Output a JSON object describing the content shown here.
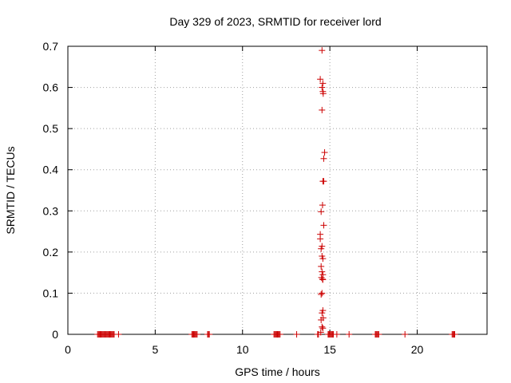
{
  "chart_data": {
    "type": "scatter",
    "title": "Day 329 of 2023, SRMTID for receiver lord",
    "xlabel": "GPS time / hours",
    "ylabel": "SRMTID / TECUs",
    "xlim": [
      0,
      24
    ],
    "ylim": [
      0,
      0.7
    ],
    "xticks": [
      0,
      5,
      10,
      15,
      20
    ],
    "yticks": [
      0,
      0.1,
      0.2,
      0.3,
      0.4,
      0.5,
      0.6,
      0.7
    ],
    "xtick_labels": [
      "0",
      "5",
      "10",
      "15",
      "20"
    ],
    "ytick_labels": [
      "0",
      "0.1",
      "0.2",
      "0.3",
      "0.4",
      "0.5",
      "0.6",
      "0.7"
    ],
    "grid": true,
    "marker": "+",
    "marker_color": "#cc0000",
    "series": [
      {
        "points": [
          [
            1.7,
            0
          ],
          [
            1.75,
            0
          ],
          [
            1.8,
            0
          ],
          [
            1.85,
            0
          ],
          [
            1.9,
            0
          ],
          [
            1.95,
            0
          ],
          [
            2.0,
            0
          ],
          [
            2.05,
            0
          ],
          [
            2.1,
            0
          ],
          [
            2.15,
            0
          ],
          [
            2.2,
            0
          ],
          [
            2.25,
            0
          ],
          [
            2.3,
            0
          ],
          [
            2.35,
            0
          ],
          [
            2.4,
            0
          ],
          [
            2.45,
            0
          ],
          [
            2.5,
            0
          ],
          [
            2.55,
            0
          ],
          [
            2.6,
            0
          ],
          [
            2.65,
            0
          ],
          [
            2.9,
            0
          ],
          [
            7.1,
            0
          ],
          [
            7.15,
            0
          ],
          [
            7.2,
            0
          ],
          [
            7.25,
            0
          ],
          [
            7.3,
            0
          ],
          [
            7.35,
            0
          ],
          [
            7.4,
            0
          ],
          [
            8.0,
            0
          ],
          [
            8.05,
            0
          ],
          [
            8.1,
            0
          ],
          [
            11.8,
            0
          ],
          [
            11.85,
            0
          ],
          [
            11.9,
            0
          ],
          [
            11.95,
            0
          ],
          [
            12.0,
            0
          ],
          [
            12.05,
            0
          ],
          [
            12.1,
            0
          ],
          [
            12.15,
            0
          ],
          [
            13.1,
            0
          ],
          [
            14.3,
            0
          ],
          [
            14.35,
            0
          ],
          [
            14.9,
            0
          ],
          [
            14.95,
            0
          ],
          [
            15.0,
            0
          ],
          [
            15.05,
            0
          ],
          [
            15.1,
            0
          ],
          [
            15.15,
            0
          ],
          [
            15.2,
            0
          ],
          [
            15.4,
            0
          ],
          [
            16.1,
            0
          ],
          [
            17.6,
            0
          ],
          [
            17.65,
            0
          ],
          [
            17.7,
            0
          ],
          [
            17.75,
            0
          ],
          [
            17.8,
            0
          ],
          [
            19.3,
            0
          ],
          [
            22.0,
            0
          ],
          [
            22.05,
            0
          ],
          [
            22.1,
            0
          ],
          [
            22.15,
            0
          ],
          [
            14.55,
            0.69
          ],
          [
            14.45,
            0.62
          ],
          [
            14.6,
            0.61
          ],
          [
            14.55,
            0.6
          ],
          [
            14.6,
            0.59
          ],
          [
            14.62,
            0.585
          ],
          [
            14.55,
            0.545
          ],
          [
            14.7,
            0.442
          ],
          [
            14.65,
            0.427
          ],
          [
            14.6,
            0.372
          ],
          [
            14.65,
            0.372
          ],
          [
            14.58,
            0.314
          ],
          [
            14.5,
            0.298
          ],
          [
            14.65,
            0.265
          ],
          [
            14.45,
            0.243
          ],
          [
            14.45,
            0.232
          ],
          [
            14.55,
            0.214
          ],
          [
            14.5,
            0.208
          ],
          [
            14.55,
            0.19
          ],
          [
            14.6,
            0.184
          ],
          [
            14.5,
            0.165
          ],
          [
            14.55,
            0.152
          ],
          [
            14.6,
            0.145
          ],
          [
            14.52,
            0.138
          ],
          [
            14.58,
            0.134
          ],
          [
            14.6,
            0.133
          ],
          [
            14.55,
            0.1
          ],
          [
            14.5,
            0.097
          ],
          [
            14.6,
            0.058
          ],
          [
            14.55,
            0.052
          ],
          [
            14.62,
            0.04
          ],
          [
            14.5,
            0.035
          ],
          [
            14.55,
            0.018
          ],
          [
            14.6,
            0.015
          ],
          [
            14.48,
            0.005
          ]
        ]
      }
    ]
  }
}
